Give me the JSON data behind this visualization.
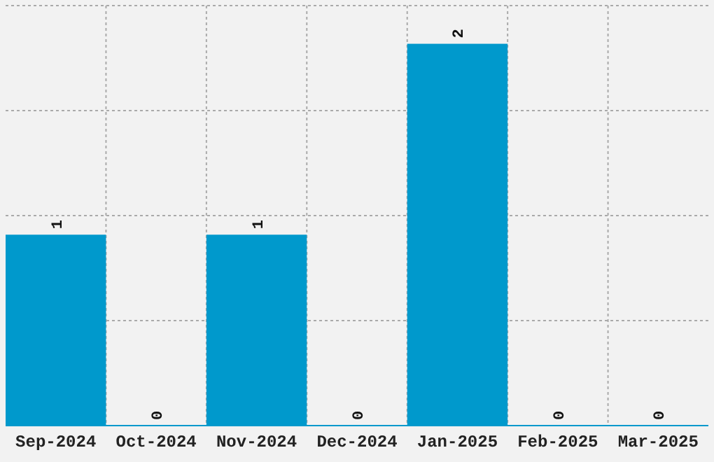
{
  "chart_data": {
    "type": "bar",
    "categories": [
      "Sep-2024",
      "Oct-2024",
      "Nov-2024",
      "Dec-2024",
      "Jan-2025",
      "Feb-2025",
      "Mar-2025"
    ],
    "values": [
      1,
      0,
      1,
      0,
      2,
      0,
      0
    ],
    "color": "#0099cc",
    "data_labels": true,
    "ylim": [
      0,
      2.2
    ],
    "yticks": [
      {
        "value": 0.55,
        "label": null
      },
      {
        "value": 1.1,
        "label": null
      },
      {
        "value": 1.65,
        "label": null
      },
      {
        "value": 2.2,
        "label": null
      }
    ],
    "tick_labels": "x",
    "grid": true
  }
}
